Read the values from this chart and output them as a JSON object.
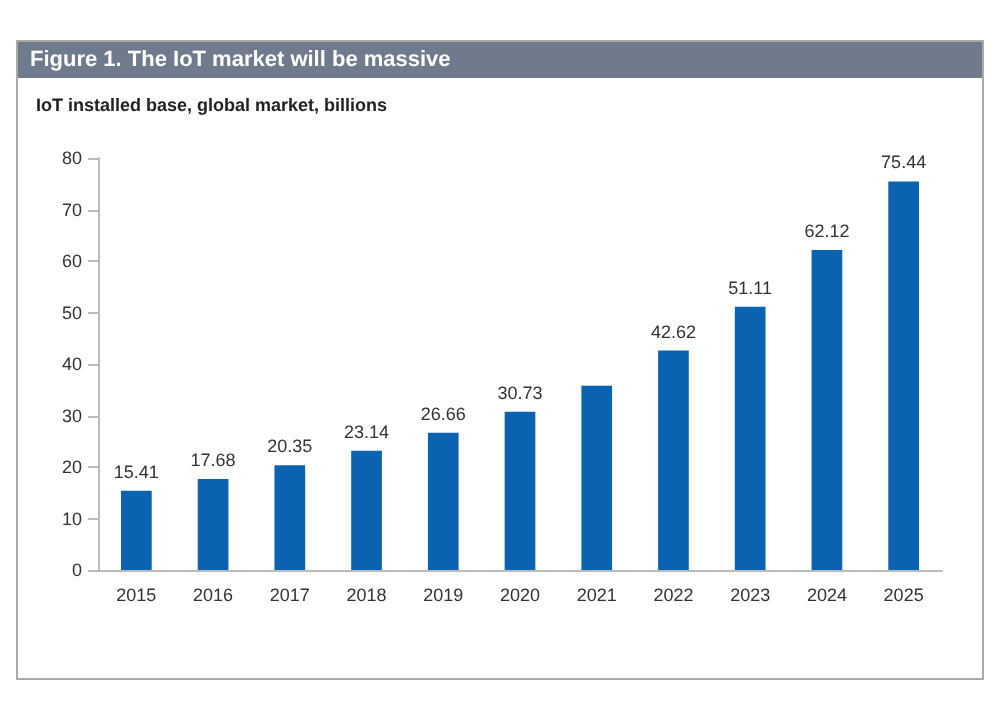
{
  "chart_data": {
    "type": "bar",
    "title": "Figure 1. The IoT market will be massive",
    "subtitle": "IoT installed base, global market, billions",
    "categories": [
      "2015",
      "2016",
      "2017",
      "2018",
      "2019",
      "2020",
      "2021",
      "2022",
      "2023",
      "2024",
      "2025"
    ],
    "values": [
      15.41,
      17.68,
      20.35,
      23.14,
      26.66,
      30.73,
      35.8,
      42.62,
      51.11,
      62.12,
      75.44
    ],
    "value_labels": [
      "15.41",
      "17.68",
      "20.35",
      "23.14",
      "26.66",
      "30.73",
      null,
      "42.62",
      "51.11",
      "62.12",
      "75.44"
    ],
    "color": "#0a62b0",
    "ylim": [
      0,
      80
    ],
    "yticks": [
      0,
      10,
      20,
      30,
      40,
      50,
      60,
      70,
      80
    ]
  }
}
